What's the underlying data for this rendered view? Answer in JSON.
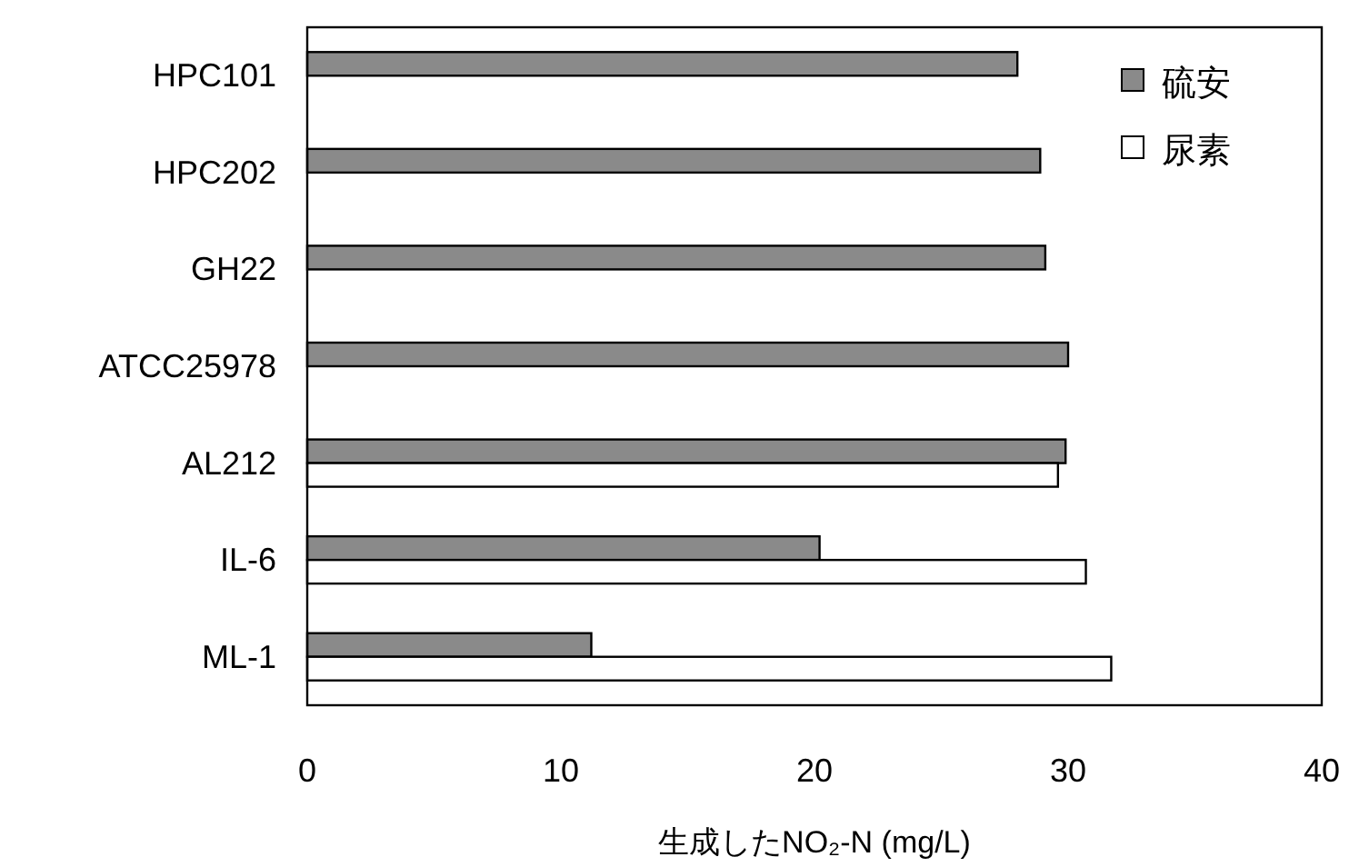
{
  "chart_data": {
    "type": "bar",
    "orientation": "horizontal",
    "categories": [
      "HPC101",
      "HPC202",
      "GH22",
      "ATCC25978",
      "AL212",
      "IL-6",
      "ML-1"
    ],
    "series": [
      {
        "name": "硫安",
        "color": "#8a8a8a",
        "values": [
          28.0,
          28.9,
          29.1,
          30.0,
          29.9,
          20.2,
          11.2
        ]
      },
      {
        "name": "尿素",
        "color": "#ffffff",
        "values": [
          null,
          null,
          null,
          null,
          29.6,
          30.7,
          31.7
        ]
      }
    ],
    "xlabel": "生成したNO₂-N (mg/L)",
    "xlim": [
      0,
      40
    ],
    "xticks": [
      0,
      10,
      20,
      30,
      40
    ],
    "grid": false,
    "legend": "top right"
  }
}
